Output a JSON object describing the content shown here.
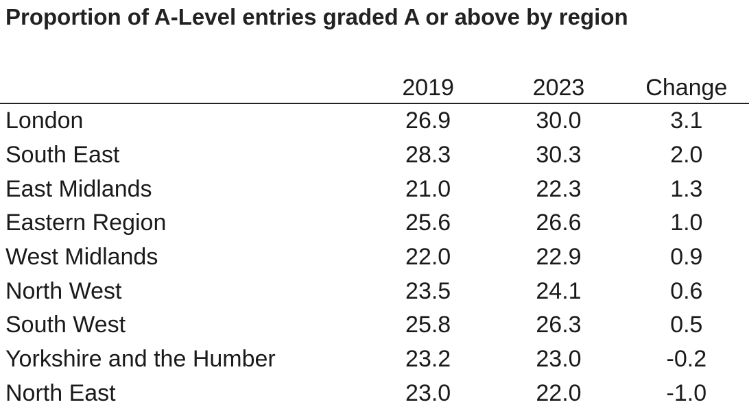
{
  "chart_data": {
    "type": "table",
    "title": "Proportion of A-Level entries graded A or above by region",
    "columns": [
      "",
      "2019",
      "2023",
      "Change"
    ],
    "rows": [
      {
        "region": "London",
        "y2019": "26.9",
        "y2023": "30.0",
        "change": "3.1"
      },
      {
        "region": "South East",
        "y2019": "28.3",
        "y2023": "30.3",
        "change": "2.0"
      },
      {
        "region": "East Midlands",
        "y2019": "21.0",
        "y2023": "22.3",
        "change": "1.3"
      },
      {
        "region": "Eastern Region",
        "y2019": "25.6",
        "y2023": "26.6",
        "change": "1.0"
      },
      {
        "region": "West Midlands",
        "y2019": "22.0",
        "y2023": "22.9",
        "change": "0.9"
      },
      {
        "region": "North West",
        "y2019": "23.5",
        "y2023": "24.1",
        "change": "0.6"
      },
      {
        "region": "South West",
        "y2019": "25.8",
        "y2023": "26.3",
        "change": "0.5"
      },
      {
        "region": "Yorkshire and the Humber",
        "y2019": "23.2",
        "y2023": "23.0",
        "change": "-0.2"
      },
      {
        "region": "North East",
        "y2019": "23.0",
        "y2023": "22.0",
        "change": "-1.0"
      }
    ]
  }
}
